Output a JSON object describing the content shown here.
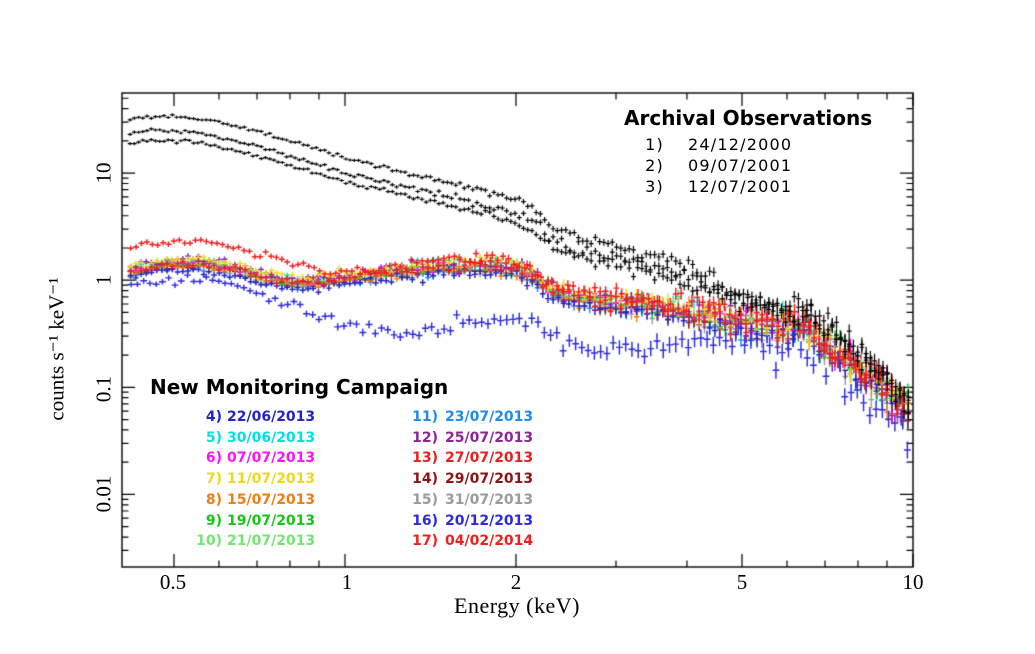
{
  "page": {
    "background": "#ffffff"
  },
  "annotations": {
    "archival": {
      "title": "Archival Observations",
      "items": [
        {
          "num": "1)",
          "date": "24/12/2000",
          "color": "#000000"
        },
        {
          "num": "2)",
          "date": "09/07/2001",
          "color": "#000000"
        },
        {
          "num": "3)",
          "date": "12/07/2001",
          "color": "#000000"
        }
      ]
    },
    "campaign": {
      "title": "New Monitoring Campaign",
      "col1": [
        {
          "num": "4)",
          "date": "22/06/2013",
          "color": "#2323c8"
        },
        {
          "num": "5)",
          "date": "30/06/2013",
          "color": "#00e0e0"
        },
        {
          "num": "6)",
          "date": "07/07/2013",
          "color": "#fa14fa"
        },
        {
          "num": "7)",
          "date": "11/07/2013",
          "color": "#ecd81e"
        },
        {
          "num": "8)",
          "date": "15/07/2013",
          "color": "#f07d14"
        },
        {
          "num": "9)",
          "date": "19/07/2013",
          "color": "#17c517"
        },
        {
          "num": "10)",
          "date": "21/07/2013",
          "color": "#72e672"
        }
      ],
      "col2": [
        {
          "num": "11)",
          "date": "23/07/2013",
          "color": "#1f8ceb"
        },
        {
          "num": "12)",
          "date": "25/07/2013",
          "color": "#8d2597"
        },
        {
          "num": "13)",
          "date": "27/07/2013",
          "color": "#e81f1f"
        },
        {
          "num": "14)",
          "date": "29/07/2013",
          "color": "#8e1414"
        },
        {
          "num": "15)",
          "date": "31/07/2013",
          "color": "#9b9b9b"
        },
        {
          "num": "16)",
          "date": "20/12/2013",
          "color": "#2a2ae0"
        },
        {
          "num": "17)",
          "date": "04/02/2014",
          "color": "#f21d1d"
        }
      ]
    }
  },
  "chart_data": {
    "type": "scatter",
    "marker": "plus-with-error-bars",
    "xlabel": "Energy (keV)",
    "ylabel": "counts s⁻¹ keV⁻¹",
    "xscale": "log",
    "yscale": "log",
    "xlim": [
      0.405,
      10
    ],
    "ylim": [
      0.0021,
      56
    ],
    "grid": false,
    "xticks": {
      "major": [
        0.5,
        1,
        2,
        5,
        10
      ],
      "labels": [
        "0.5",
        "1",
        "2",
        "5",
        "10"
      ],
      "minor": [
        0.6,
        0.7,
        0.8,
        0.9,
        3,
        4,
        6,
        7,
        8,
        9
      ]
    },
    "yticks": {
      "major": [
        0.01,
        0.1,
        1,
        10
      ],
      "labels": [
        "0.01",
        "0.1",
        "1",
        "10"
      ]
    },
    "band_shape": [
      [
        0.41,
        1.2
      ],
      [
        0.47,
        1.38
      ],
      [
        0.53,
        1.45
      ],
      [
        0.58,
        1.42
      ],
      [
        0.65,
        1.25
      ],
      [
        0.72,
        1.08
      ],
      [
        0.78,
        0.99
      ],
      [
        0.85,
        0.96
      ],
      [
        0.95,
        1.01
      ],
      [
        1.1,
        1.12
      ],
      [
        1.25,
        1.22
      ],
      [
        1.45,
        1.32
      ],
      [
        1.65,
        1.38
      ],
      [
        1.85,
        1.35
      ],
      [
        2.0,
        1.28
      ],
      [
        2.15,
        1.1
      ],
      [
        2.3,
        0.84
      ],
      [
        2.45,
        0.72
      ],
      [
        2.7,
        0.66
      ],
      [
        3.0,
        0.63
      ],
      [
        3.4,
        0.58
      ],
      [
        3.8,
        0.53
      ],
      [
        4.3,
        0.47
      ],
      [
        4.8,
        0.42
      ],
      [
        5.3,
        0.385
      ],
      [
        5.8,
        0.365
      ],
      [
        6.3,
        0.375
      ],
      [
        6.6,
        0.305
      ],
      [
        7.0,
        0.245
      ],
      [
        7.5,
        0.19
      ],
      [
        8.0,
        0.15
      ],
      [
        8.6,
        0.115
      ],
      [
        9.2,
        0.082
      ],
      [
        10,
        0.055
      ]
    ],
    "series": [
      {
        "id": "1",
        "date": "24/12/2000",
        "group": "archival",
        "color": "#000000",
        "shape": "custom",
        "n_points": 185,
        "points": [
          [
            0.41,
            31
          ],
          [
            0.45,
            34
          ],
          [
            0.5,
            34
          ],
          [
            0.56,
            32
          ],
          [
            0.63,
            28
          ],
          [
            0.71,
            24
          ],
          [
            0.8,
            20
          ],
          [
            0.9,
            16.5
          ],
          [
            1.0,
            13.5
          ],
          [
            1.15,
            11.5
          ],
          [
            1.3,
            9.8
          ],
          [
            1.5,
            8.4
          ],
          [
            1.7,
            7.1
          ],
          [
            1.9,
            6.0
          ],
          [
            2.05,
            5.2
          ],
          [
            2.2,
            4.3
          ],
          [
            2.32,
            3.1
          ],
          [
            2.5,
            2.7
          ],
          [
            2.8,
            2.25
          ],
          [
            3.2,
            1.9
          ],
          [
            3.6,
            1.6
          ],
          [
            4.0,
            1.35
          ],
          [
            4.5,
            1.0
          ],
          [
            5.0,
            0.76
          ],
          [
            5.5,
            0.62
          ],
          [
            6.0,
            0.54
          ],
          [
            6.35,
            0.57
          ],
          [
            6.7,
            0.48
          ],
          [
            7.0,
            0.41
          ],
          [
            7.5,
            0.31
          ],
          [
            8.0,
            0.23
          ],
          [
            8.6,
            0.165
          ],
          [
            9.2,
            0.115
          ],
          [
            10,
            0.07
          ]
        ]
      },
      {
        "id": "2",
        "date": "09/07/2001",
        "group": "archival",
        "color": "#000000",
        "shape": "custom",
        "n_points": 185,
        "points": [
          [
            0.41,
            23
          ],
          [
            0.45,
            25
          ],
          [
            0.5,
            25
          ],
          [
            0.56,
            23.5
          ],
          [
            0.63,
            20.5
          ],
          [
            0.71,
            17.5
          ],
          [
            0.8,
            14.5
          ],
          [
            0.9,
            12
          ],
          [
            1.0,
            10
          ],
          [
            1.15,
            8.5
          ],
          [
            1.3,
            7.3
          ],
          [
            1.5,
            6.3
          ],
          [
            1.7,
            5.3
          ],
          [
            1.9,
            4.5
          ],
          [
            2.05,
            3.9
          ],
          [
            2.2,
            3.25
          ],
          [
            2.32,
            2.4
          ],
          [
            2.5,
            2.1
          ],
          [
            2.8,
            1.78
          ],
          [
            3.2,
            1.52
          ],
          [
            3.6,
            1.3
          ],
          [
            4.0,
            1.12
          ],
          [
            4.5,
            0.86
          ],
          [
            5.0,
            0.68
          ],
          [
            5.5,
            0.57
          ],
          [
            6.0,
            0.5
          ],
          [
            6.35,
            0.53
          ],
          [
            6.7,
            0.45
          ],
          [
            7.0,
            0.385
          ],
          [
            7.5,
            0.29
          ],
          [
            8.0,
            0.22
          ],
          [
            8.6,
            0.155
          ],
          [
            9.2,
            0.108
          ],
          [
            10,
            0.065
          ]
        ]
      },
      {
        "id": "3",
        "date": "12/07/2001",
        "group": "archival",
        "color": "#000000",
        "shape": "custom",
        "n_points": 185,
        "points": [
          [
            0.41,
            18.5
          ],
          [
            0.45,
            20
          ],
          [
            0.5,
            20
          ],
          [
            0.56,
            19
          ],
          [
            0.63,
            16.6
          ],
          [
            0.71,
            14.2
          ],
          [
            0.8,
            11.8
          ],
          [
            0.9,
            9.8
          ],
          [
            1.0,
            8.2
          ],
          [
            1.15,
            7.0
          ],
          [
            1.3,
            6.0
          ],
          [
            1.5,
            5.2
          ],
          [
            1.7,
            4.4
          ],
          [
            1.9,
            3.7
          ],
          [
            2.05,
            3.2
          ],
          [
            2.2,
            2.7
          ],
          [
            2.32,
            2.0
          ],
          [
            2.5,
            1.75
          ],
          [
            2.8,
            1.5
          ],
          [
            3.2,
            1.28
          ],
          [
            3.6,
            1.1
          ],
          [
            4.0,
            0.95
          ],
          [
            4.5,
            0.75
          ],
          [
            5.0,
            0.6
          ],
          [
            5.5,
            0.51
          ],
          [
            6.0,
            0.46
          ],
          [
            6.35,
            0.49
          ],
          [
            6.7,
            0.42
          ],
          [
            7.0,
            0.36
          ],
          [
            7.5,
            0.27
          ],
          [
            8.0,
            0.205
          ],
          [
            8.6,
            0.148
          ],
          [
            9.2,
            0.103
          ],
          [
            10,
            0.062
          ]
        ]
      },
      {
        "id": "4",
        "date": "22/06/2013",
        "group": "campaign",
        "color": "#2323c8",
        "shape": "band",
        "scale": 0.86,
        "n_points": 150
      },
      {
        "id": "5",
        "date": "30/06/2013",
        "group": "campaign",
        "color": "#00e0e0",
        "shape": "band",
        "scale": 1.04,
        "n_points": 150
      },
      {
        "id": "6",
        "date": "07/07/2013",
        "group": "campaign",
        "color": "#fa14fa",
        "shape": "band",
        "scale": 1.0,
        "n_points": 150
      },
      {
        "id": "7",
        "date": "11/07/2013",
        "group": "campaign",
        "color": "#ecd81e",
        "shape": "band",
        "scale": 1.1,
        "n_points": 150
      },
      {
        "id": "8",
        "date": "15/07/2013",
        "group": "campaign",
        "color": "#f07d14",
        "shape": "band",
        "scale": 0.94,
        "n_points": 150
      },
      {
        "id": "9",
        "date": "19/07/2013",
        "group": "campaign",
        "color": "#17c517",
        "shape": "band",
        "scale": 0.98,
        "n_points": 150
      },
      {
        "id": "10",
        "date": "21/07/2013",
        "group": "campaign",
        "color": "#72e672",
        "shape": "band",
        "scale": 1.02,
        "n_points": 150
      },
      {
        "id": "11",
        "date": "23/07/2013",
        "group": "campaign",
        "color": "#1f8ceb",
        "shape": "band",
        "scale": 0.9,
        "n_points": 150
      },
      {
        "id": "12",
        "date": "25/07/2013",
        "group": "campaign",
        "color": "#8d2597",
        "shape": "band",
        "scale": 1.08,
        "n_points": 150
      },
      {
        "id": "13",
        "date": "27/07/2013",
        "group": "campaign",
        "color": "#e81f1f",
        "shape": "band",
        "scale": 1.0,
        "n_points": 150
      },
      {
        "id": "14",
        "date": "29/07/2013",
        "group": "campaign",
        "color": "#8e1414",
        "shape": "band",
        "scale": 0.95,
        "n_points": 150
      },
      {
        "id": "15",
        "date": "31/07/2013",
        "group": "campaign",
        "color": "#9b9b9b",
        "shape": "band",
        "scale": 0.92,
        "n_points": 150
      },
      {
        "id": "16",
        "date": "20/12/2013",
        "group": "campaign",
        "color": "#2a2ae0",
        "shape": "custom",
        "n_points": 125,
        "points": [
          [
            0.41,
            0.9
          ],
          [
            0.47,
            1.0
          ],
          [
            0.53,
            1.05
          ],
          [
            0.6,
            0.98
          ],
          [
            0.68,
            0.8
          ],
          [
            0.75,
            0.68
          ],
          [
            0.82,
            0.58
          ],
          [
            0.9,
            0.46
          ],
          [
            1.0,
            0.385
          ],
          [
            1.15,
            0.33
          ],
          [
            1.3,
            0.32
          ],
          [
            1.5,
            0.36
          ],
          [
            1.7,
            0.4
          ],
          [
            1.9,
            0.42
          ],
          [
            2.1,
            0.4
          ],
          [
            2.25,
            0.33
          ],
          [
            2.45,
            0.25
          ],
          [
            2.7,
            0.22
          ],
          [
            3.0,
            0.23
          ],
          [
            3.5,
            0.25
          ],
          [
            4.0,
            0.26
          ],
          [
            4.5,
            0.25
          ],
          [
            5.0,
            0.225
          ],
          [
            5.5,
            0.21
          ],
          [
            6.0,
            0.215
          ],
          [
            6.35,
            0.235
          ],
          [
            6.8,
            0.175
          ],
          [
            7.3,
            0.13
          ],
          [
            7.9,
            0.095
          ],
          [
            8.6,
            0.065
          ],
          [
            9.3,
            0.042
          ],
          [
            10,
            0.03
          ]
        ]
      },
      {
        "id": "17",
        "date": "04/02/2014",
        "group": "campaign",
        "color": "#f21d1d",
        "shape": "custom",
        "n_points": 145,
        "points": [
          [
            0.41,
            2.0
          ],
          [
            0.46,
            2.2
          ],
          [
            0.52,
            2.3
          ],
          [
            0.58,
            2.25
          ],
          [
            0.65,
            2.0
          ],
          [
            0.72,
            1.7
          ],
          [
            0.8,
            1.45
          ],
          [
            0.9,
            1.26
          ],
          [
            1.0,
            1.2
          ],
          [
            1.15,
            1.3
          ],
          [
            1.35,
            1.45
          ],
          [
            1.55,
            1.55
          ],
          [
            1.75,
            1.6
          ],
          [
            1.95,
            1.5
          ],
          [
            2.1,
            1.32
          ],
          [
            2.25,
            1.02
          ],
          [
            2.4,
            0.85
          ],
          [
            2.7,
            0.78
          ],
          [
            3.0,
            0.73
          ],
          [
            3.5,
            0.65
          ],
          [
            4.0,
            0.58
          ],
          [
            4.5,
            0.52
          ],
          [
            5.0,
            0.46
          ],
          [
            5.5,
            0.425
          ],
          [
            6.0,
            0.405
          ],
          [
            6.35,
            0.415
          ],
          [
            6.7,
            0.335
          ],
          [
            7.0,
            0.27
          ],
          [
            7.5,
            0.205
          ],
          [
            8.0,
            0.155
          ],
          [
            8.6,
            0.12
          ],
          [
            9.2,
            0.085
          ],
          [
            10,
            0.058
          ]
        ]
      }
    ],
    "draw_order": [
      "11",
      "15",
      "14",
      "5",
      "9",
      "10",
      "6",
      "12",
      "8",
      "4",
      "7",
      "13",
      "16",
      "17",
      "1",
      "2",
      "3"
    ]
  }
}
